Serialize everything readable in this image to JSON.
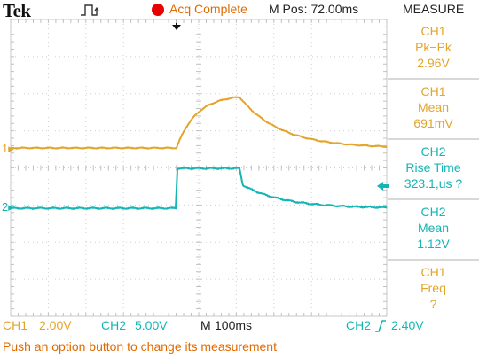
{
  "header": {
    "brand": "Tek",
    "acq_status": "Acq Complete",
    "mpos": "M Pos: 72.00ms",
    "menu_title": "MEASURE"
  },
  "channels": {
    "ch1_marker": "1",
    "ch2_marker": "2"
  },
  "measurements": [
    {
      "source": "CH1",
      "type": "Pk−Pk",
      "value": "2.96V"
    },
    {
      "source": "CH1",
      "type": "Mean",
      "value": "691mV"
    },
    {
      "source": "CH2",
      "type": "Rise Time",
      "value": "323.1,us ?"
    },
    {
      "source": "CH2",
      "type": "Mean",
      "value": "1.12V"
    },
    {
      "source": "CH1",
      "type": "Freq",
      "value": "?"
    }
  ],
  "status_bar": {
    "ch1_label": "CH1",
    "ch1_scale": "2.00V",
    "ch2_label": "CH2",
    "ch2_scale": "5.00V",
    "timebase_label": "M",
    "timebase": "100ms",
    "trigger_source": "CH2",
    "trigger_level": "2.40V",
    "help_text": "Push an option button to change its measurement"
  },
  "colors": {
    "ch1": "#e3a42a",
    "ch2": "#14b5b5",
    "status": "#e06a00",
    "acq_dot": "#e60000"
  }
}
